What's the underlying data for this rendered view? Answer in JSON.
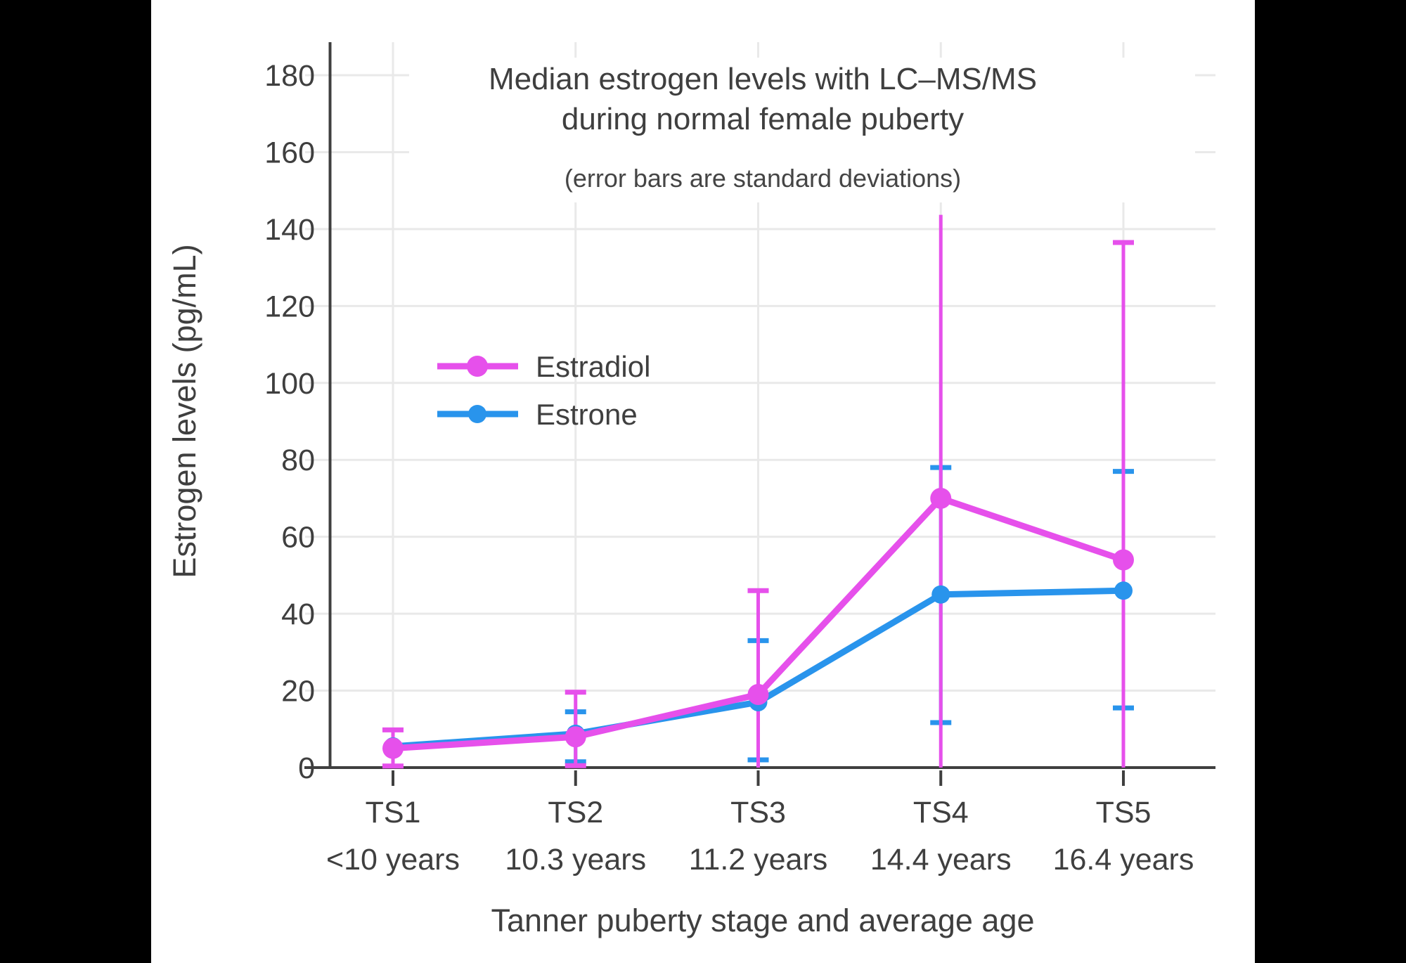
{
  "style": {
    "background": "#000000",
    "plot_background": "#ffffff",
    "text_color": "#3f3f3f",
    "grid_color": "#e9e9e9",
    "axis_color": "#3f3f3f",
    "estradiol_color": "#e650eb",
    "estrone_color": "#2994ec"
  },
  "chart_data": {
    "type": "line",
    "title_line1": "Median estrogen levels with LC–MS/MS",
    "title_line2": "during normal female puberty",
    "subtitle": "(error bars are standard deviations)",
    "xlabel": "Tanner puberty stage and average age",
    "ylabel": "Estrogen levels (pg/mL)",
    "categories": [
      "TS1",
      "TS2",
      "TS3",
      "TS4",
      "TS5"
    ],
    "category_ages": [
      "<10 years",
      "10.3 years",
      "11.2 years",
      "14.4 years",
      "16.4 years"
    ],
    "yticks": [
      0,
      20,
      40,
      60,
      80,
      100,
      120,
      140,
      160,
      180
    ],
    "ylim": [
      0,
      185
    ],
    "grid": true,
    "legend_position": "inside-left-middle",
    "series": [
      {
        "name": "Estradiol",
        "color": "#e650eb",
        "values": [
          5,
          8,
          19,
          70,
          54
        ],
        "err_hi": [
          9.8,
          19.6,
          46,
          143.7,
          136.5
        ],
        "err_lo": [
          0.4,
          0.5,
          0,
          0,
          0
        ],
        "cap_hi": [
          true,
          true,
          true,
          false,
          true
        ],
        "cap_lo": [
          true,
          true,
          false,
          false,
          false
        ]
      },
      {
        "name": "Estrone",
        "color": "#2994ec",
        "values": [
          5.5,
          8.8,
          17,
          45,
          46
        ],
        "err_hi": [
          null,
          14.5,
          33,
          78,
          77
        ],
        "err_lo": [
          null,
          1.5,
          2,
          11.7,
          15.5
        ],
        "cap_hi": [
          false,
          true,
          true,
          true,
          true
        ],
        "cap_lo": [
          false,
          true,
          true,
          true,
          true
        ]
      }
    ]
  }
}
